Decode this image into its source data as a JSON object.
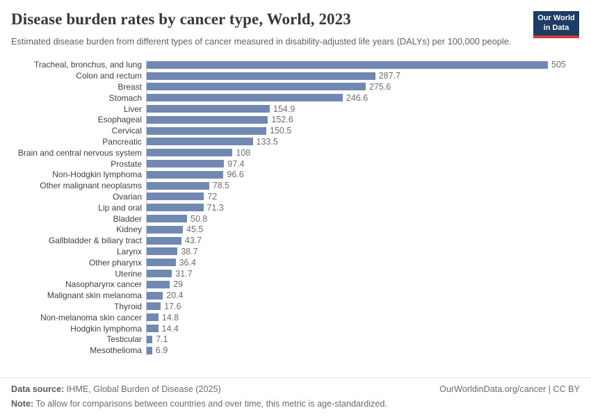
{
  "header": {
    "title": "Disease burden rates by cancer type, World, 2023",
    "subtitle": "Estimated disease burden from different types of cancer measured in disability-adjusted life years (DALYs) per 100,000 people.",
    "logo": {
      "line1": "Our World",
      "line2": "in Data",
      "bg_color": "#1d3d63",
      "accent_color": "#cf3d3e"
    }
  },
  "chart_data": {
    "type": "bar",
    "orientation": "horizontal",
    "title": "Disease burden rates by cancer type, World, 2023",
    "xlabel": "",
    "ylabel": "",
    "unit": "DALYs per 100,000 people",
    "grid": false,
    "value_labels": true,
    "bar_color": "#7189b2",
    "axis_line_color": "#c9c9c9",
    "xlim": [
      0,
      505
    ],
    "categories": [
      "Tracheal, bronchus, and lung",
      "Colon and rectum",
      "Breast",
      "Stomach",
      "Liver",
      "Esophageal",
      "Cervical",
      "Pancreatic",
      "Brain and central nervous system",
      "Prostate",
      "Non-Hodgkin lymphoma",
      "Other malignant neoplasms",
      "Ovarian",
      "Lip and oral",
      "Bladder",
      "Kidney",
      "Gallbladder & biliary tract",
      "Larynx",
      "Other pharynx",
      "Uterine",
      "Nasopharynx cancer",
      "Malignant skin melanoma",
      "Thyroid",
      "Non-melanoma skin cancer",
      "Hodgkin lymphoma",
      "Testicular",
      "Mesothelioma"
    ],
    "values": [
      505,
      287.7,
      275.6,
      246.6,
      154.9,
      152.6,
      150.5,
      133.5,
      108,
      97.4,
      96.6,
      78.5,
      72,
      71.3,
      50.8,
      45.5,
      43.7,
      38.7,
      36.4,
      31.7,
      29,
      20.4,
      17.6,
      14.8,
      14.4,
      7.1,
      6.9
    ]
  },
  "footer": {
    "source_label": "Data source:",
    "source_text": " IHME, Global Burden of Disease (2025)",
    "note_label": "Note:",
    "note_text": " To allow for comparisons between countries and over time, this metric is age-standardized.",
    "credit": "OurWorldinData.org/cancer | CC BY"
  }
}
